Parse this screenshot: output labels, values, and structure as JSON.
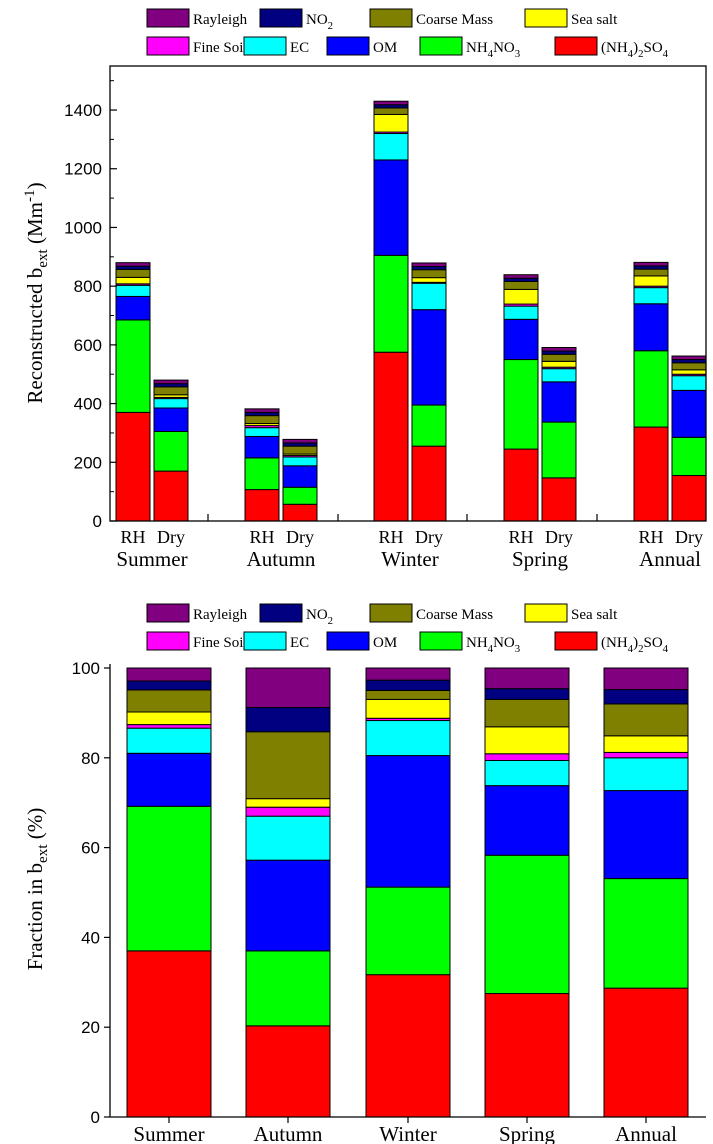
{
  "legend": [
    {
      "key": "rayleigh",
      "parts": [
        {
          "t": "Rayleigh"
        }
      ],
      "color": "#800080"
    },
    {
      "key": "no2",
      "parts": [
        {
          "t": "NO"
        },
        {
          "t": "2",
          "sub": true
        }
      ],
      "color": "#000080"
    },
    {
      "key": "coarse",
      "parts": [
        {
          "t": "Coarse Mass"
        }
      ],
      "color": "#808000"
    },
    {
      "key": "seasalt",
      "parts": [
        {
          "t": "Sea salt"
        }
      ],
      "color": "#FFFF00"
    },
    {
      "key": "finesoil",
      "parts": [
        {
          "t": "Fine Soil"
        }
      ],
      "color": "#FF00FF"
    },
    {
      "key": "ec",
      "parts": [
        {
          "t": "EC"
        }
      ],
      "color": "#00FFFF"
    },
    {
      "key": "om",
      "parts": [
        {
          "t": "OM"
        }
      ],
      "color": "#0000FF"
    },
    {
      "key": "nh4no3",
      "parts": [
        {
          "t": "NH"
        },
        {
          "t": "4",
          "sub": true
        },
        {
          "t": "NO"
        },
        {
          "t": "3",
          "sub": true
        }
      ],
      "color": "#00FF00"
    },
    {
      "key": "nh42so4",
      "parts": [
        {
          "t": "(NH"
        },
        {
          "t": "4",
          "sub": true
        },
        {
          "t": ")"
        },
        {
          "t": "2",
          "sub": true
        },
        {
          "t": "SO"
        },
        {
          "t": "4",
          "sub": true
        }
      ],
      "color": "#FF0000"
    }
  ],
  "chart_data": [
    {
      "type": "bar",
      "stacked": true,
      "ylabel_parts": [
        {
          "t": "Reconstructed b"
        },
        {
          "t": "ext",
          "sub": true
        },
        {
          "t": " (Mm"
        },
        {
          "t": "-1",
          "sup": true
        },
        {
          "t": ")"
        }
      ],
      "ylim": [
        0,
        1550
      ],
      "yticks": [
        0,
        200,
        400,
        600,
        800,
        1000,
        1200,
        1400
      ],
      "groups": [
        "Summer",
        "Autumn",
        "Winter",
        "Spring",
        "Annual"
      ],
      "subcategories": [
        "RH",
        "Dry"
      ],
      "stack_order": [
        "nh42so4",
        "nh4no3",
        "om",
        "ec",
        "finesoil",
        "seasalt",
        "coarse",
        "no2",
        "rayleigh"
      ],
      "bars": [
        {
          "group": "Summer",
          "sub": "RH",
          "values": {
            "nh42so4": 370,
            "nh4no3": 315,
            "om": 80,
            "ec": 38,
            "finesoil": 5,
            "seasalt": 22,
            "coarse": 27,
            "no2": 11,
            "rayleigh": 12
          }
        },
        {
          "group": "Summer",
          "sub": "Dry",
          "values": {
            "nh42so4": 170,
            "nh4no3": 135,
            "om": 80,
            "ec": 32,
            "finesoil": 4,
            "seasalt": 9,
            "coarse": 27,
            "no2": 11,
            "rayleigh": 12
          }
        },
        {
          "group": "Autumn",
          "sub": "RH",
          "values": {
            "nh42so4": 107,
            "nh4no3": 108,
            "om": 73,
            "ec": 30,
            "finesoil": 7,
            "seasalt": 7,
            "coarse": 27,
            "no2": 11,
            "rayleigh": 12
          }
        },
        {
          "group": "Autumn",
          "sub": "Dry",
          "values": {
            "nh42so4": 57,
            "nh4no3": 58,
            "om": 73,
            "ec": 30,
            "finesoil": 5,
            "seasalt": 5,
            "coarse": 27,
            "no2": 11,
            "rayleigh": 12
          }
        },
        {
          "group": "Winter",
          "sub": "RH",
          "values": {
            "nh42so4": 575,
            "nh4no3": 330,
            "om": 325,
            "ec": 90,
            "finesoil": 5,
            "seasalt": 60,
            "coarse": 22,
            "no2": 11,
            "rayleigh": 12
          }
        },
        {
          "group": "Winter",
          "sub": "Dry",
          "values": {
            "nh42so4": 255,
            "nh4no3": 140,
            "om": 325,
            "ec": 90,
            "finesoil": 3,
            "seasalt": 16,
            "coarse": 27,
            "no2": 11,
            "rayleigh": 12
          }
        },
        {
          "group": "Spring",
          "sub": "RH",
          "values": {
            "nh42so4": 245,
            "nh4no3": 305,
            "om": 137,
            "ec": 45,
            "finesoil": 7,
            "seasalt": 50,
            "coarse": 27,
            "no2": 11,
            "rayleigh": 12
          }
        },
        {
          "group": "Spring",
          "sub": "Dry",
          "values": {
            "nh42so4": 147,
            "nh4no3": 190,
            "om": 137,
            "ec": 45,
            "finesoil": 5,
            "seasalt": 20,
            "coarse": 24,
            "no2": 11,
            "rayleigh": 12
          }
        },
        {
          "group": "Annual",
          "sub": "RH",
          "values": {
            "nh42so4": 320,
            "nh4no3": 260,
            "om": 160,
            "ec": 55,
            "finesoil": 5,
            "seasalt": 35,
            "coarse": 23,
            "no2": 11,
            "rayleigh": 12
          }
        },
        {
          "group": "Annual",
          "sub": "Dry",
          "values": {
            "nh42so4": 155,
            "nh4no3": 130,
            "om": 160,
            "ec": 50,
            "finesoil": 5,
            "seasalt": 15,
            "coarse": 24,
            "no2": 11,
            "rayleigh": 12
          }
        }
      ]
    },
    {
      "type": "bar",
      "stacked": true,
      "percent": true,
      "ylabel_parts": [
        {
          "t": "Fraction in b"
        },
        {
          "t": "ext",
          "sub": true
        },
        {
          "t": " (%)"
        }
      ],
      "ylim": [
        0,
        100
      ],
      "yticks": [
        0,
        20,
        40,
        60,
        80,
        100
      ],
      "groups": [
        "Summer",
        "Autumn",
        "Winter",
        "Spring",
        "Annual"
      ],
      "stack_order": [
        "nh42so4",
        "nh4no3",
        "om",
        "ec",
        "finesoil",
        "seasalt",
        "coarse",
        "no2",
        "rayleigh"
      ],
      "bars": [
        {
          "group": "Summer",
          "values": {
            "nh42so4": 37.0,
            "nh4no3": 32.2,
            "om": 11.8,
            "ec": 5.6,
            "finesoil": 0.8,
            "seasalt": 2.8,
            "coarse": 4.9,
            "no2": 2.0,
            "rayleigh": 2.9
          }
        },
        {
          "group": "Autumn",
          "values": {
            "nh42so4": 20.3,
            "nh4no3": 16.7,
            "om": 20.2,
            "ec": 9.8,
            "finesoil": 2.0,
            "seasalt": 1.9,
            "coarse": 14.9,
            "no2": 5.4,
            "rayleigh": 8.8
          }
        },
        {
          "group": "Winter",
          "values": {
            "nh42so4": 31.7,
            "nh4no3": 19.5,
            "om": 29.3,
            "ec": 7.8,
            "finesoil": 0.5,
            "seasalt": 4.2,
            "coarse": 2.0,
            "no2": 2.3,
            "rayleigh": 2.7
          }
        },
        {
          "group": "Spring",
          "values": {
            "nh42so4": 27.5,
            "nh4no3": 30.8,
            "om": 15.5,
            "ec": 5.6,
            "finesoil": 1.5,
            "seasalt": 6.0,
            "coarse": 6.1,
            "no2": 2.4,
            "rayleigh": 4.6
          }
        },
        {
          "group": "Annual",
          "values": {
            "nh42so4": 28.7,
            "nh4no3": 24.4,
            "om": 19.6,
            "ec": 7.3,
            "finesoil": 1.2,
            "seasalt": 3.7,
            "coarse": 7.1,
            "no2": 3.2,
            "rayleigh": 4.8
          }
        }
      ]
    }
  ]
}
